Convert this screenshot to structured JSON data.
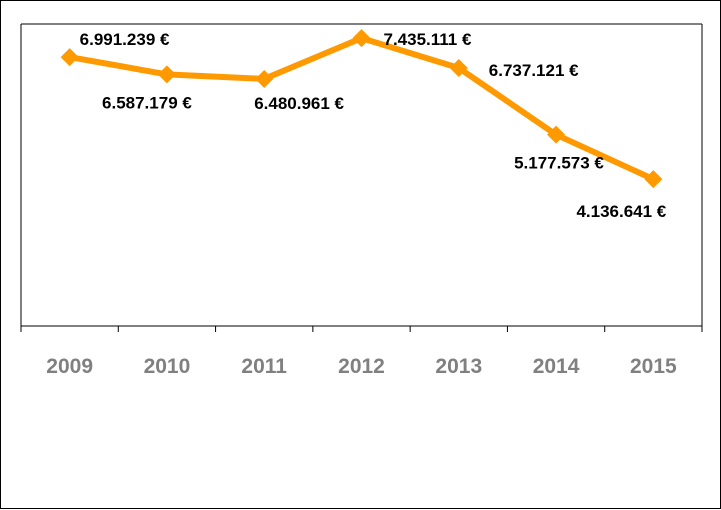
{
  "chart_data": {
    "type": "line",
    "title": "",
    "xlabel": "",
    "ylabel": "",
    "categories": [
      "2009",
      "2010",
      "2011",
      "2012",
      "2013",
      "2014",
      "2015"
    ],
    "series": [
      {
        "values": [
          6991239,
          6587179,
          6480961,
          7435111,
          6737121,
          5177573,
          4136641
        ],
        "labels": [
          "6.991.239 €",
          "6.587.179 €",
          "6.480.961 €",
          "7.435.111 €",
          "6.737.121 €",
          "5.177.573 €",
          "4.136.641 €"
        ]
      }
    ],
    "grid": false,
    "legend": "none",
    "line_color": "#FF9900",
    "tick_color": "#808080",
    "label_color": "#000000"
  }
}
